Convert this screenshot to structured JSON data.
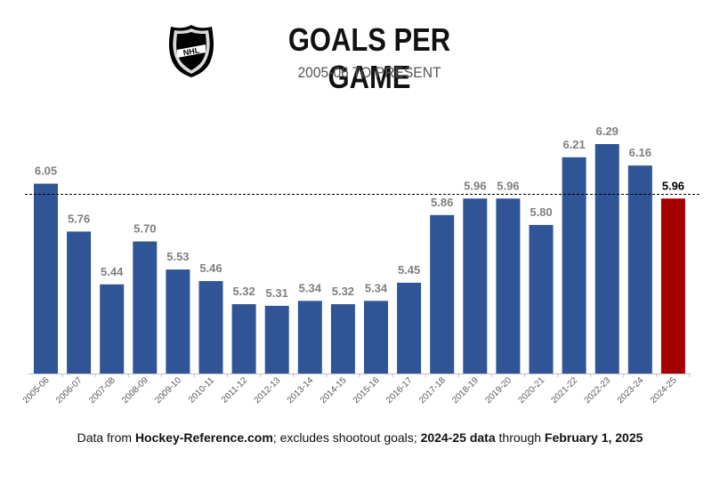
{
  "header": {
    "title": "GOALS PER GAME",
    "subtitle": "2005-06 TO PRESENT"
  },
  "logo": {
    "text": "NHL",
    "icon": "nhl-shield-logo"
  },
  "footer": {
    "part1": "Data from ",
    "part2": "Hockey-Reference.com",
    "part3": "; excludes shootout goals; ",
    "part4": "2024-25 data",
    "part5": " through ",
    "part6": "February 1, 2025"
  },
  "chart_data": {
    "type": "bar",
    "title": "GOALS PER GAME",
    "subtitle": "2005-06 TO PRESENT",
    "categories": [
      "2005-06",
      "2006-07",
      "2007-08",
      "2008-09",
      "2009-10",
      "2010-11",
      "2011-12",
      "2012-13",
      "2013-14",
      "2014-15",
      "2015-16",
      "2016-17",
      "2017-18",
      "2018-19",
      "2019-20",
      "2020-21",
      "2021-22",
      "2022-23",
      "2023-24",
      "2024-25"
    ],
    "values": [
      6.05,
      5.76,
      5.44,
      5.7,
      5.53,
      5.46,
      5.32,
      5.31,
      5.34,
      5.32,
      5.34,
      5.45,
      5.86,
      5.96,
      5.96,
      5.8,
      6.21,
      6.29,
      6.16,
      5.96
    ],
    "value_labels": [
      "6.05",
      "5.76",
      "5.44",
      "5.70",
      "5.53",
      "5.46",
      "5.32",
      "5.31",
      "5.34",
      "5.32",
      "5.34",
      "5.45",
      "5.86",
      "5.96",
      "5.96",
      "5.80",
      "6.21",
      "6.29",
      "6.16",
      "5.96"
    ],
    "highlight_index": 19,
    "reference_line": 6.05,
    "ylim": [
      4.9,
      6.4
    ],
    "colors": {
      "bar": "#2f5597",
      "highlight": "#a50000",
      "label": "#7f7f7f",
      "highlight_label": "#000000",
      "axis": "#bfbfbf"
    },
    "grid": false,
    "legend": "none"
  }
}
